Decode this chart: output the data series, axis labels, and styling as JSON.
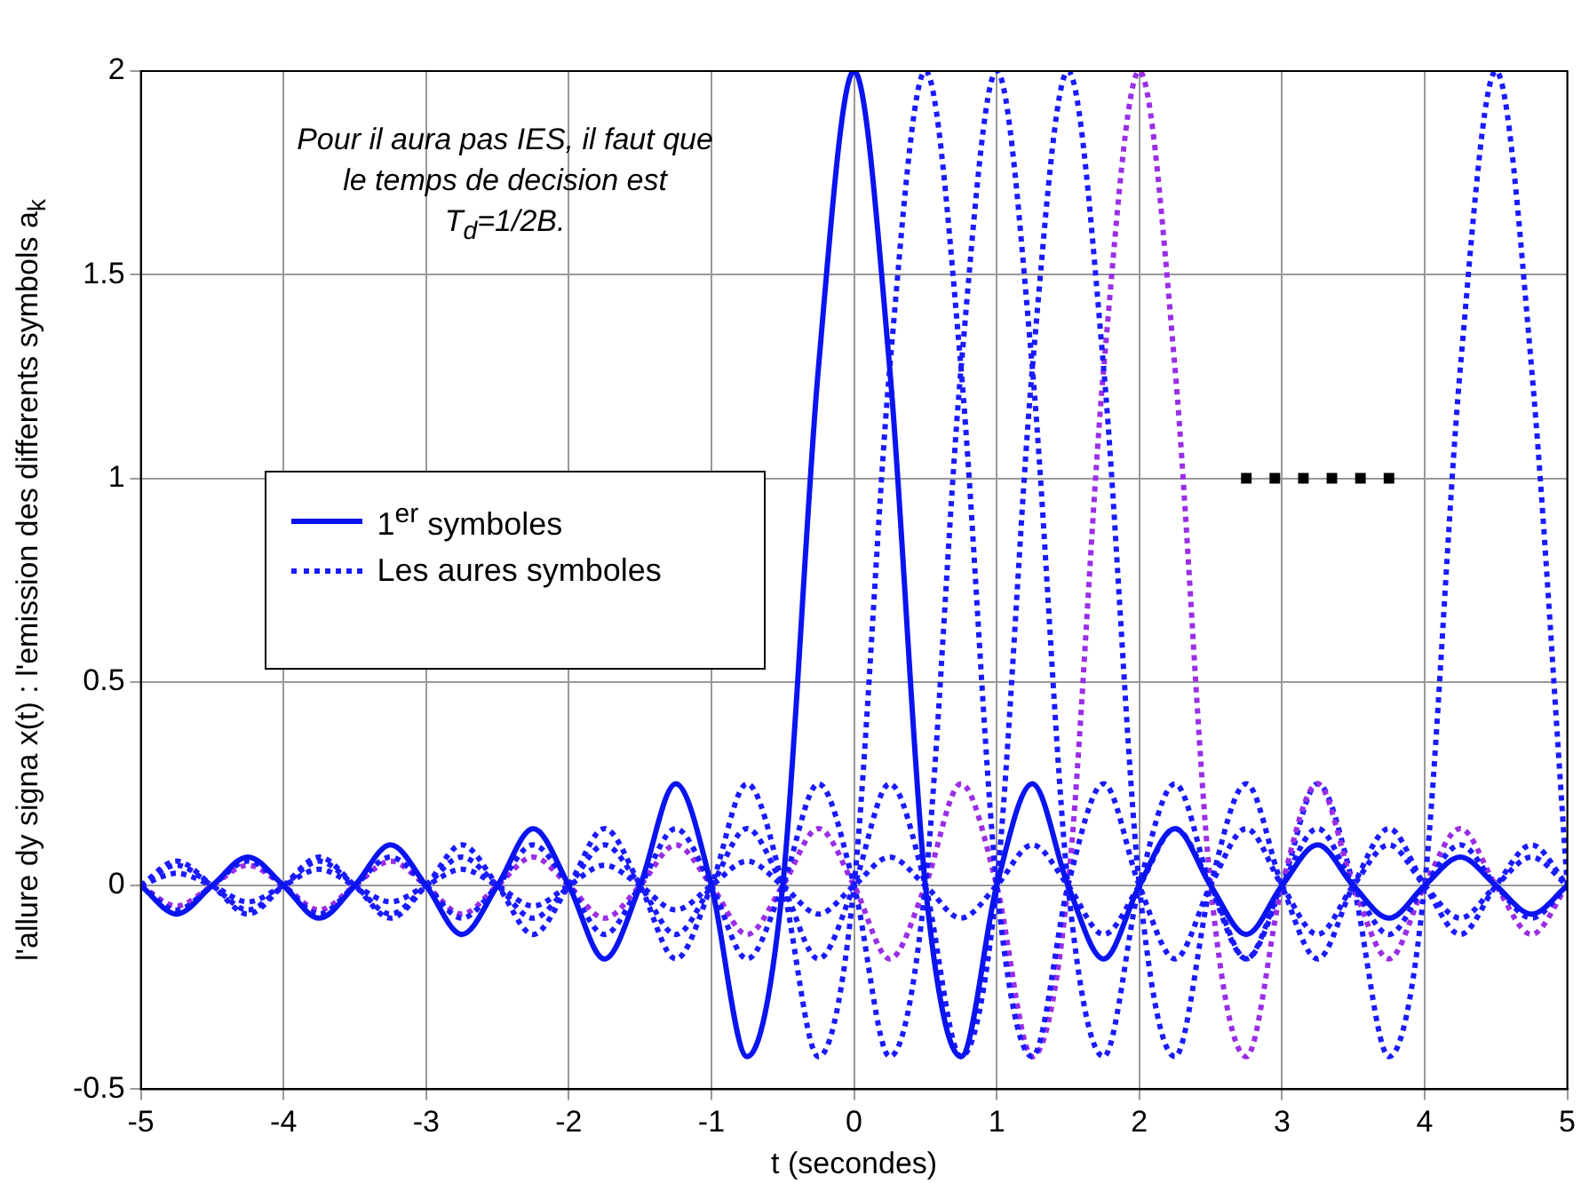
{
  "chart_data": {
    "type": "line",
    "xlabel": "t (secondes)",
    "ylabel": "l'allure dy signa x(t) : l'emission des differents symbols a$_{k}$",
    "annotations": [
      "Pour il aura pas IES, il faut que\nle temps de decision est\nT$_{d}$=1/2B."
    ],
    "x": [
      -5,
      -4.75,
      -4.5,
      -4.25,
      -4,
      -3.75,
      -3.5,
      -3.25,
      -3,
      -2.75,
      -2.5,
      -2.25,
      -2,
      -1.75,
      -1.5,
      -1.25,
      -1,
      -0.75,
      -0.5,
      -0.25,
      0,
      0.25,
      0.5,
      0.75,
      1,
      1.25,
      1.5,
      1.75,
      2,
      2.25,
      2.5,
      2.75,
      3,
      3.25,
      3.5,
      3.75,
      4,
      4.25,
      4.5,
      4.75,
      5
    ],
    "series": [
      {
        "name": "1$^{er}$ symboles",
        "color": "#0a14f0",
        "line_style": "solid",
        "values": [
          0,
          -0.07,
          0,
          0.07,
          0,
          -0.08,
          0,
          0.1,
          0,
          -0.12,
          0,
          0.14,
          0,
          -0.18,
          0,
          0.25,
          0,
          -0.42,
          0,
          1.27,
          2,
          1.27,
          0,
          -0.42,
          0,
          0.25,
          0,
          -0.18,
          0,
          0.14,
          0,
          -0.12,
          0,
          0.1,
          0,
          -0.08,
          0,
          0.07,
          0,
          -0.07,
          0
        ]
      },
      {
        "name": "Les aures symboles",
        "color": "#1a1aff",
        "line_style": "dotted",
        "values": [
          0,
          0.06,
          0,
          -0.07,
          0,
          0.07,
          0,
          -0.08,
          0,
          0.1,
          0,
          -0.12,
          0,
          0.14,
          0,
          -0.18,
          0,
          0.25,
          0,
          -0.42,
          0,
          1.27,
          2,
          1.27,
          0,
          -0.42,
          0,
          0.25,
          0,
          -0.18,
          0,
          0.14,
          0,
          -0.12,
          0,
          0.1,
          0,
          -0.08,
          0,
          0.07,
          0
        ]
      },
      {
        "color": "#1a1aff",
        "line_style": "dotted",
        "values": [
          0,
          -0.06,
          0,
          0.06,
          0,
          -0.07,
          0,
          0.07,
          0,
          -0.08,
          0,
          0.1,
          0,
          -0.12,
          0,
          0.14,
          0,
          -0.18,
          0,
          0.25,
          0,
          -0.42,
          0,
          1.27,
          2,
          1.27,
          0,
          -0.42,
          0,
          0.25,
          0,
          -0.18,
          0,
          0.14,
          0,
          -0.12,
          0,
          0.1,
          0,
          -0.08,
          0
        ]
      },
      {
        "color": "#1a1aff",
        "line_style": "dotted",
        "values": [
          0,
          0.05,
          0,
          -0.06,
          0,
          0.06,
          0,
          -0.07,
          0,
          0.07,
          0,
          -0.08,
          0,
          0.1,
          0,
          -0.12,
          0,
          0.14,
          0,
          -0.18,
          0,
          0.25,
          0,
          -0.42,
          0,
          1.27,
          2,
          1.27,
          0,
          -0.42,
          0,
          0.25,
          0,
          -0.18,
          0,
          0.14,
          0,
          -0.12,
          0,
          0.1,
          0
        ]
      },
      {
        "color": "#9a2ee6",
        "line_style": "dotted",
        "values": [
          0,
          -0.05,
          0,
          0.05,
          0,
          -0.06,
          0,
          0.06,
          0,
          -0.07,
          0,
          0.07,
          0,
          -0.08,
          0,
          0.1,
          0,
          -0.12,
          0,
          0.14,
          0,
          -0.18,
          0,
          0.25,
          0,
          -0.42,
          0,
          1.27,
          2,
          1.27,
          0,
          -0.42,
          0,
          0.25,
          0,
          -0.18,
          0,
          0.14,
          0,
          -0.12,
          0
        ]
      },
      {
        "color": "#1a1aff",
        "line_style": "dotted",
        "values": [
          0,
          0.03,
          0,
          -0.04,
          0,
          0.04,
          0,
          -0.04,
          0,
          0.04,
          0,
          -0.05,
          0,
          0.05,
          0,
          -0.06,
          0,
          0.06,
          0,
          -0.07,
          0,
          0.07,
          0,
          -0.08,
          0,
          0.1,
          0,
          -0.12,
          0,
          0.14,
          0,
          -0.18,
          0,
          0.25,
          0,
          -0.42,
          0,
          1.27,
          2,
          1.27,
          0
        ]
      },
      {
        "type": "scatter",
        "marker": "square",
        "color": "#000000",
        "x": [
          2.75,
          2.95,
          3.15,
          3.35,
          3.55,
          3.75
        ],
        "values": [
          1,
          1,
          1,
          1,
          1,
          1
        ]
      }
    ],
    "xlim": [
      -5,
      5
    ],
    "xticks": [
      -5,
      -4,
      -3,
      -2,
      -1,
      0,
      1,
      2,
      3,
      4,
      5
    ],
    "ylim": [
      -0.5,
      2
    ],
    "yticks": [
      -0.5,
      0,
      0.5,
      1,
      1.5,
      2
    ],
    "grid": true,
    "legend": "left"
  }
}
